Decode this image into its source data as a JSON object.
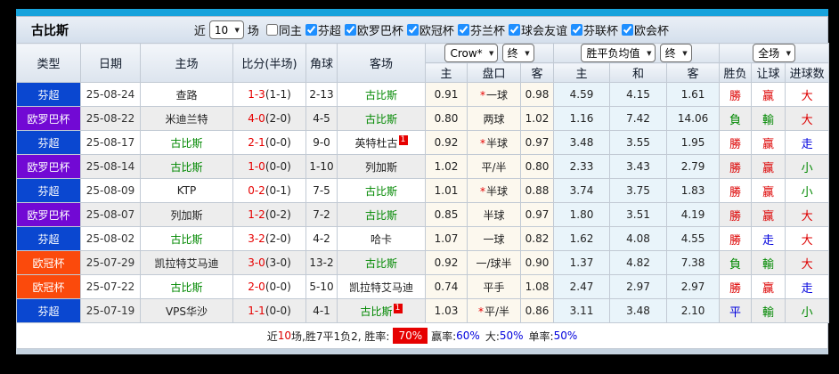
{
  "toolbar": {
    "title": "古比斯",
    "recent_label": "近",
    "matches_value": "10",
    "matches_label": "场",
    "checkboxes": [
      {
        "label": "同主",
        "checked": false
      },
      {
        "label": "芬超",
        "checked": true
      },
      {
        "label": "欧罗巴杯",
        "checked": true
      },
      {
        "label": "欧冠杯",
        "checked": true
      },
      {
        "label": "芬兰杯",
        "checked": true
      },
      {
        "label": "球会友谊",
        "checked": true
      },
      {
        "label": "芬联杯",
        "checked": true
      },
      {
        "label": "欧会杯",
        "checked": true
      }
    ]
  },
  "table": {
    "left_headers": [
      "类型",
      "日期",
      "主场",
      "比分(半场)",
      "角球",
      "客场"
    ],
    "selects": {
      "company": "Crow*",
      "company_time": "终",
      "avg": "胜平负均值",
      "avg_time": "终",
      "scope": "全场"
    },
    "sub_headers": [
      "主",
      "盘口",
      "客",
      "主",
      "和",
      "客",
      "胜负",
      "让球",
      "进球数"
    ],
    "rows": [
      {
        "league": "芬超",
        "date": "25-08-24",
        "home": {
          "name": "查路",
          "subject": false,
          "card": ""
        },
        "score": "1-3",
        "half": "(1-1)",
        "corner": "2-13",
        "away": {
          "name": "古比斯",
          "subject": true,
          "card": ""
        },
        "odds": {
          "home": "0.91",
          "star": true,
          "line": "一球",
          "away": "0.98"
        },
        "avg": {
          "home": "4.59",
          "draw": "4.15",
          "away": "1.61"
        },
        "result": {
          "t": "勝",
          "c": "red"
        },
        "handicap": {
          "t": "赢",
          "c": "red"
        },
        "goals": {
          "t": "大",
          "c": "red"
        }
      },
      {
        "league": "欧罗巴杯",
        "date": "25-08-22",
        "home": {
          "name": "米迪兰特",
          "subject": false,
          "card": ""
        },
        "score": "4-0",
        "half": "(2-0)",
        "corner": "4-5",
        "away": {
          "name": "古比斯",
          "subject": true,
          "card": ""
        },
        "odds": {
          "home": "0.80",
          "star": false,
          "line": "两球",
          "away": "1.02"
        },
        "avg": {
          "home": "1.16",
          "draw": "7.42",
          "away": "14.06"
        },
        "result": {
          "t": "負",
          "c": "green"
        },
        "handicap": {
          "t": "輸",
          "c": "green"
        },
        "goals": {
          "t": "大",
          "c": "red"
        }
      },
      {
        "league": "芬超",
        "date": "25-08-17",
        "home": {
          "name": "古比斯",
          "subject": true,
          "card": ""
        },
        "score": "2-1",
        "half": "(0-0)",
        "corner": "9-0",
        "away": {
          "name": "英特杜古",
          "subject": false,
          "card": "1"
        },
        "odds": {
          "home": "0.92",
          "star": true,
          "line": "半球",
          "away": "0.97"
        },
        "avg": {
          "home": "3.48",
          "draw": "3.55",
          "away": "1.95"
        },
        "result": {
          "t": "勝",
          "c": "red"
        },
        "handicap": {
          "t": "赢",
          "c": "red"
        },
        "goals": {
          "t": "走",
          "c": "blue"
        }
      },
      {
        "league": "欧罗巴杯",
        "date": "25-08-14",
        "home": {
          "name": "古比斯",
          "subject": true,
          "card": ""
        },
        "score": "1-0",
        "half": "(0-0)",
        "corner": "1-10",
        "away": {
          "name": "列加斯",
          "subject": false,
          "card": ""
        },
        "odds": {
          "home": "1.02",
          "star": false,
          "line": "平/半",
          "away": "0.80"
        },
        "avg": {
          "home": "2.33",
          "draw": "3.43",
          "away": "2.79"
        },
        "result": {
          "t": "勝",
          "c": "red"
        },
        "handicap": {
          "t": "赢",
          "c": "red"
        },
        "goals": {
          "t": "小",
          "c": "green"
        }
      },
      {
        "league": "芬超",
        "date": "25-08-09",
        "home": {
          "name": "KTP",
          "subject": false,
          "card": ""
        },
        "score": "0-2",
        "half": "(0-1)",
        "corner": "7-5",
        "away": {
          "name": "古比斯",
          "subject": true,
          "card": ""
        },
        "odds": {
          "home": "1.01",
          "star": true,
          "line": "半球",
          "away": "0.88"
        },
        "avg": {
          "home": "3.74",
          "draw": "3.75",
          "away": "1.83"
        },
        "result": {
          "t": "勝",
          "c": "red"
        },
        "handicap": {
          "t": "赢",
          "c": "red"
        },
        "goals": {
          "t": "小",
          "c": "green"
        }
      },
      {
        "league": "欧罗巴杯",
        "date": "25-08-07",
        "home": {
          "name": "列加斯",
          "subject": false,
          "card": ""
        },
        "score": "1-2",
        "half": "(0-2)",
        "corner": "7-2",
        "away": {
          "name": "古比斯",
          "subject": true,
          "card": ""
        },
        "odds": {
          "home": "0.85",
          "star": false,
          "line": "半球",
          "away": "0.97"
        },
        "avg": {
          "home": "1.80",
          "draw": "3.51",
          "away": "4.19"
        },
        "result": {
          "t": "勝",
          "c": "red"
        },
        "handicap": {
          "t": "赢",
          "c": "red"
        },
        "goals": {
          "t": "大",
          "c": "red"
        }
      },
      {
        "league": "芬超",
        "date": "25-08-02",
        "home": {
          "name": "古比斯",
          "subject": true,
          "card": ""
        },
        "score": "3-2",
        "half": "(2-0)",
        "corner": "4-2",
        "away": {
          "name": "哈卡",
          "subject": false,
          "card": ""
        },
        "odds": {
          "home": "1.07",
          "star": false,
          "line": "一球",
          "away": "0.82"
        },
        "avg": {
          "home": "1.62",
          "draw": "4.08",
          "away": "4.55"
        },
        "result": {
          "t": "勝",
          "c": "red"
        },
        "handicap": {
          "t": "走",
          "c": "blue"
        },
        "goals": {
          "t": "大",
          "c": "red"
        }
      },
      {
        "league": "欧冠杯",
        "date": "25-07-29",
        "home": {
          "name": "凯拉特艾马迪",
          "subject": false,
          "card": ""
        },
        "score": "3-0",
        "half": "(3-0)",
        "corner": "13-2",
        "away": {
          "name": "古比斯",
          "subject": true,
          "card": ""
        },
        "odds": {
          "home": "0.92",
          "star": false,
          "line": "一/球半",
          "away": "0.90"
        },
        "avg": {
          "home": "1.37",
          "draw": "4.82",
          "away": "7.38"
        },
        "result": {
          "t": "負",
          "c": "green"
        },
        "handicap": {
          "t": "輸",
          "c": "green"
        },
        "goals": {
          "t": "大",
          "c": "red"
        }
      },
      {
        "league": "欧冠杯",
        "date": "25-07-22",
        "home": {
          "name": "古比斯",
          "subject": true,
          "card": ""
        },
        "score": "2-0",
        "half": "(0-0)",
        "corner": "5-10",
        "away": {
          "name": "凯拉特艾马迪",
          "subject": false,
          "card": ""
        },
        "odds": {
          "home": "0.74",
          "star": false,
          "line": "平手",
          "away": "1.08"
        },
        "avg": {
          "home": "2.47",
          "draw": "2.97",
          "away": "2.97"
        },
        "result": {
          "t": "勝",
          "c": "red"
        },
        "handicap": {
          "t": "赢",
          "c": "red"
        },
        "goals": {
          "t": "走",
          "c": "blue"
        }
      },
      {
        "league": "芬超",
        "date": "25-07-19",
        "home": {
          "name": "VPS华沙",
          "subject": false,
          "card": ""
        },
        "score": "1-1",
        "half": "(0-0)",
        "corner": "4-1",
        "away": {
          "name": "古比斯",
          "subject": true,
          "card": "1"
        },
        "odds": {
          "home": "1.03",
          "star": true,
          "line": "平/半",
          "away": "0.86"
        },
        "avg": {
          "home": "3.11",
          "draw": "3.48",
          "away": "2.10"
        },
        "result": {
          "t": "平",
          "c": "blue"
        },
        "handicap": {
          "t": "輸",
          "c": "green"
        },
        "goals": {
          "t": "小",
          "c": "green"
        }
      }
    ]
  },
  "footer": {
    "seg_recent": "近",
    "recent_count": "10",
    "seg_record": "场,胜7平1负2, 胜率:",
    "win_rate": "70%",
    "seg_win": "赢率:",
    "win_value": "60%",
    "seg_big": "大:",
    "big_value": "50%",
    "seg_single": "单率:",
    "single_value": "50%"
  },
  "colors": {
    "accent_bar": "#18a3dc",
    "league": {
      "芬超": "#0a47d0",
      "欧罗巴杯": "#7209d4",
      "欧冠杯": "#fb4a0c"
    },
    "subject_team": "#008800",
    "score_red": "#e60000",
    "flag_red": "#dd0000",
    "flag_green": "#008800",
    "flag_blue": "#0000dd",
    "win_rate_badge_bg": "#e60000"
  }
}
